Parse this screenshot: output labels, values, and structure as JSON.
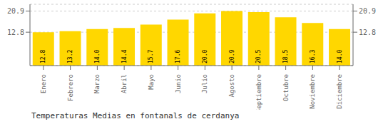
{
  "chart_data": {
    "type": "bar",
    "title": "Temperaturas Medias en fontanals de cerdanya",
    "categories": [
      "Enero",
      "Febrero",
      "Marzo",
      "Abril",
      "Mayo",
      "Junio",
      "Julio",
      "Agosto",
      "Septiembre",
      "Octubre",
      "Noviembre",
      "Diciembre"
    ],
    "values": [
      12.8,
      13.2,
      14.0,
      14.4,
      15.7,
      17.6,
      20.0,
      20.9,
      20.5,
      18.5,
      16.3,
      14.0
    ],
    "value_labels": [
      "12.8",
      "13.2",
      "14.0",
      "14.4",
      "15.7",
      "17.6",
      "20.0",
      "20.9",
      "20.5",
      "18.5",
      "16.3",
      "14.0"
    ],
    "data_labels": true,
    "color": "#FFD700",
    "ylim": [
      0,
      23.5
    ],
    "yticks": [
      12.8,
      20.9
    ],
    "y2lim": [
      0,
      23.5
    ],
    "y2ticks": [
      12.8,
      20.9
    ],
    "grid": true
  }
}
